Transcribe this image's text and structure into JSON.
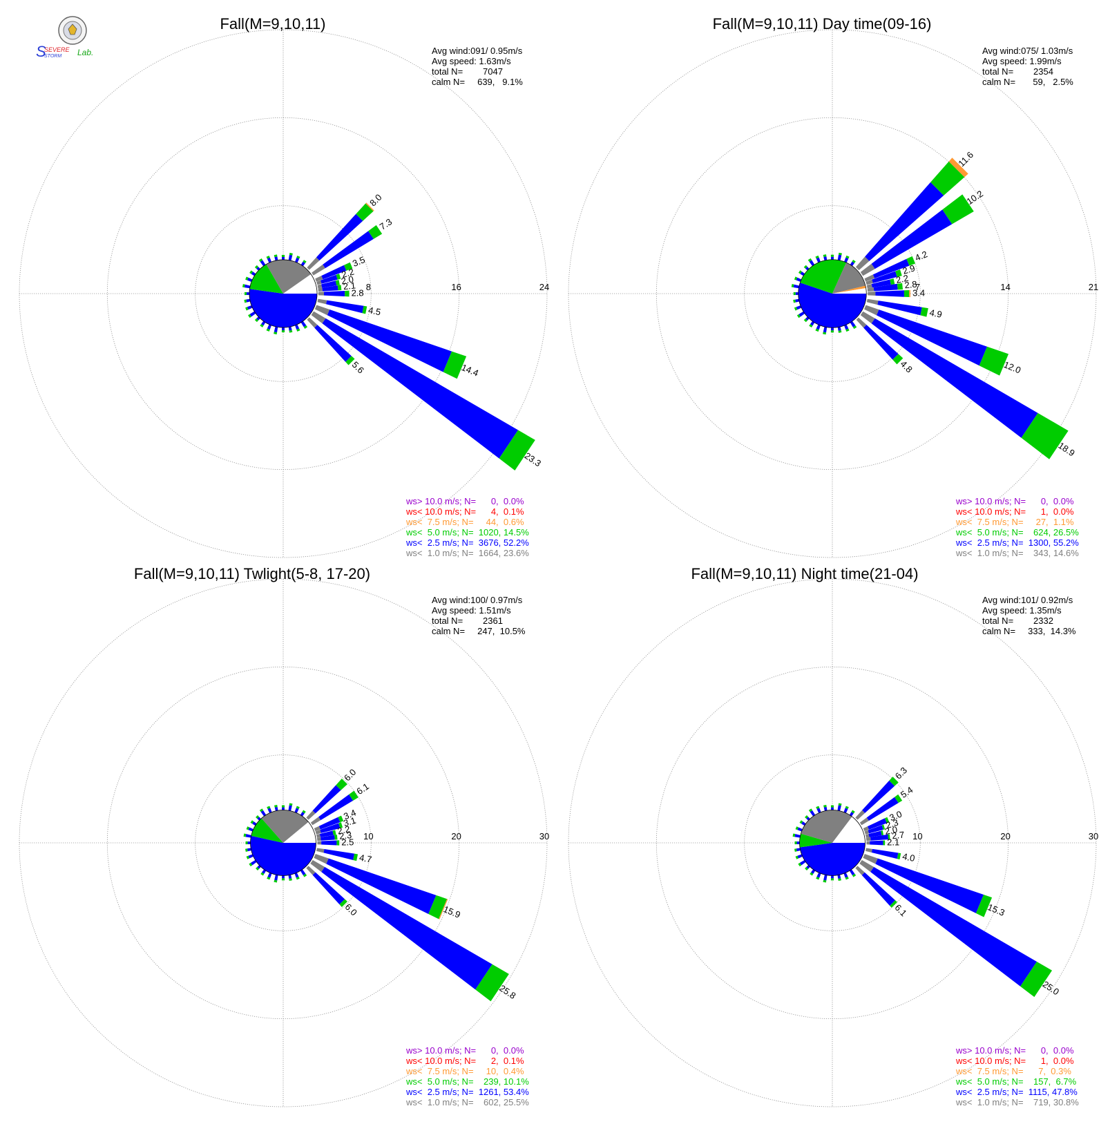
{
  "logo": {
    "text_severe": "SEVERE",
    "text_storm": "STORM",
    "text_lab": "Lab.",
    "colors": {
      "s_blue": "#2a3ed6",
      "s_red": "#e0242a",
      "green": "#18a818",
      "orange": "#ff8c00"
    }
  },
  "colors": {
    "gt10": "#9900cc",
    "lt10": "#ff0000",
    "lt7_5": "#ff9933",
    "lt5": "#00cc00",
    "lt2_5": "#0000ff",
    "lt1": "#808080",
    "calm_sector": "#ffffff",
    "axis": "#909090"
  },
  "chart_data": [
    {
      "type": "wind-rose",
      "title": "Fall(M=9,10,11)",
      "info": [
        "Avg wind:091/ 0.95m/s",
        "Avg speed: 1.63m/s",
        "total N=        7047",
        "calm N=     639,   9.1%"
      ],
      "rings": [
        8,
        16,
        24
      ],
      "ring_labels": [
        "8",
        "16",
        "24"
      ],
      "calm_pct": 9.1,
      "pie_radius_data": 1.7,
      "pie": [
        [
          "lt2_5",
          52.2
        ],
        [
          "lt5",
          14.5
        ],
        [
          "lt1",
          23.6
        ],
        [
          "calm_sector",
          9.7
        ]
      ],
      "spokes": [
        {
          "dir": 45,
          "total": 8.0,
          "lt5": 1.3,
          "lt7_5": 0.1,
          "label": "8.0"
        },
        {
          "dir": 56.25,
          "total": 7.3,
          "lt5": 0.9,
          "label": "7.3"
        },
        {
          "dir": 67.5,
          "total": 3.5,
          "lt5": 0.6,
          "label": "3.5"
        },
        {
          "dir": 73,
          "total": 2.2,
          "lt5": 0.3,
          "label": "2.2"
        },
        {
          "dir": 78.75,
          "total": 2.0,
          "lt5": 0.3,
          "label": "2.0"
        },
        {
          "dir": 84,
          "total": 2.1,
          "lt5": 0.3,
          "label": "2.1"
        },
        {
          "dir": 90,
          "total": 2.8,
          "lt5": 0.4,
          "label": "2.8"
        },
        {
          "dir": 101.25,
          "total": 4.5,
          "lt5": 0.3,
          "label": "4.5"
        },
        {
          "dir": 112.5,
          "total": 14.4,
          "lt5": 1.4,
          "label": "14.4"
        },
        {
          "dir": 123.75,
          "total": 23.3,
          "lt5": 1.8,
          "label": "23.3"
        },
        {
          "dir": 135,
          "total": 5.6,
          "lt5": 0.4,
          "label": "5.6"
        }
      ],
      "legend": [
        {
          "key": "gt10",
          "text": "ws> 10.0 m/s; N=      0,  0.0%"
        },
        {
          "key": "lt10",
          "text": "ws< 10.0 m/s; N=      4,  0.1%"
        },
        {
          "key": "lt7_5",
          "text": "ws<  7.5 m/s; N=     44,  0.6%"
        },
        {
          "key": "lt5",
          "text": "ws<  5.0 m/s; N=  1020, 14.5%"
        },
        {
          "key": "lt2_5",
          "text": "ws<  2.5 m/s; N=  3676, 52.2%"
        },
        {
          "key": "lt1",
          "text": "ws<  1.0 m/s; N=  1664, 23.6%"
        }
      ]
    },
    {
      "type": "wind-rose",
      "title": "Fall(M=9,10,11) Day time(09-16)",
      "info": [
        "Avg wind:075/ 1.03m/s",
        "Avg speed: 1.99m/s",
        "total N=        2354",
        "calm N=       59,   2.5%"
      ],
      "rings": [
        7,
        14,
        21
      ],
      "ring_labels": [
        "7",
        "14",
        "21"
      ],
      "calm_pct": 2.5,
      "pie_radius_data": 1.5,
      "pie": [
        [
          "lt2_5",
          55.2
        ],
        [
          "lt5",
          26.5
        ],
        [
          "lt1",
          14.6
        ],
        [
          "lt7_5",
          1.1
        ],
        [
          "calm_sector",
          2.6
        ]
      ],
      "spokes": [
        {
          "dir": 45,
          "total": 11.6,
          "lt5": 2.2,
          "lt7_5": 0.4,
          "label": "11.6"
        },
        {
          "dir": 56.25,
          "total": 10.2,
          "lt5": 2.0,
          "label": "10.2"
        },
        {
          "dir": 67.5,
          "total": 4.2,
          "lt5": 0.5,
          "label": "4.2"
        },
        {
          "dir": 73,
          "total": 2.9,
          "lt5": 0.4,
          "label": "2.9"
        },
        {
          "dir": 78.75,
          "total": 2.2,
          "lt5": 0.3,
          "label": "2.2"
        },
        {
          "dir": 84,
          "total": 2.8,
          "lt5": 0.4,
          "label": "2.8"
        },
        {
          "dir": 90,
          "total": 3.4,
          "lt5": 0.4,
          "lt7_5": 0.1,
          "label": "3.4"
        },
        {
          "dir": 101.25,
          "total": 4.9,
          "lt5": 0.5,
          "label": "4.9"
        },
        {
          "dir": 112.5,
          "total": 12.0,
          "lt5": 1.8,
          "label": "12.0"
        },
        {
          "dir": 123.75,
          "total": 18.9,
          "lt5": 2.8,
          "label": "18.9"
        },
        {
          "dir": 135,
          "total": 4.8,
          "lt5": 0.5,
          "label": "4.8"
        }
      ],
      "legend": [
        {
          "key": "gt10",
          "text": "ws> 10.0 m/s; N=      0,  0.0%"
        },
        {
          "key": "lt10",
          "text": "ws< 10.0 m/s; N=      1,  0.0%"
        },
        {
          "key": "lt7_5",
          "text": "ws<  7.5 m/s; N=     27,  1.1%"
        },
        {
          "key": "lt5",
          "text": "ws<  5.0 m/s; N=    624, 26.5%"
        },
        {
          "key": "lt2_5",
          "text": "ws<  2.5 m/s; N=  1300, 55.2%"
        },
        {
          "key": "lt1",
          "text": "ws<  1.0 m/s; N=    343, 14.6%"
        }
      ]
    },
    {
      "type": "wind-rose",
      "title": "Fall(M=9,10,11) Twlight(5-8, 17-20)",
      "info": [
        "Avg wind:100/ 0.97m/s",
        "Avg speed: 1.51m/s",
        "total N=        2361",
        "calm N=     247,  10.5%"
      ],
      "rings": [
        10,
        20,
        30
      ],
      "ring_labels": [
        "10",
        "20",
        "30"
      ],
      "calm_pct": 10.5,
      "pie_radius_data": 2.0,
      "pie": [
        [
          "lt2_5",
          53.4
        ],
        [
          "lt5",
          10.1
        ],
        [
          "lt1",
          25.5
        ],
        [
          "calm_sector",
          11.0
        ]
      ],
      "spokes": [
        {
          "dir": 45,
          "total": 6.0,
          "lt5": 1.0,
          "label": "6.0"
        },
        {
          "dir": 56.25,
          "total": 6.1,
          "lt5": 0.7,
          "label": "6.1"
        },
        {
          "dir": 67.5,
          "total": 3.4,
          "lt5": 0.4,
          "label": "3.4"
        },
        {
          "dir": 73,
          "total": 3.1,
          "lt5": 0.3,
          "label": "3.1"
        },
        {
          "dir": 78.75,
          "total": 2.2,
          "lt5": 0.3,
          "label": "2.2"
        },
        {
          "dir": 84,
          "total": 2.3,
          "lt5": 0.3,
          "label": "2.3"
        },
        {
          "dir": 90,
          "total": 2.5,
          "lt5": 0.3,
          "label": "2.5"
        },
        {
          "dir": 101.25,
          "total": 4.7,
          "lt5": 0.4,
          "label": "4.7"
        },
        {
          "dir": 112.5,
          "total": 15.9,
          "lt5": 1.3,
          "lt7_5": 0.1,
          "label": "15.9"
        },
        {
          "dir": 123.75,
          "total": 25.8,
          "lt5": 2.2,
          "label": "25.8"
        },
        {
          "dir": 135,
          "total": 6.0,
          "lt5": 0.4,
          "label": "6.0"
        }
      ],
      "legend": [
        {
          "key": "gt10",
          "text": "ws> 10.0 m/s; N=      0,  0.0%"
        },
        {
          "key": "lt10",
          "text": "ws< 10.0 m/s; N=      2,  0.1%"
        },
        {
          "key": "lt7_5",
          "text": "ws<  7.5 m/s; N=     10,  0.4%"
        },
        {
          "key": "lt5",
          "text": "ws<  5.0 m/s; N=    239, 10.1%"
        },
        {
          "key": "lt2_5",
          "text": "ws<  2.5 m/s; N=  1261, 53.4%"
        },
        {
          "key": "lt1",
          "text": "ws<  1.0 m/s; N=    602, 25.5%"
        }
      ]
    },
    {
      "type": "wind-rose",
      "title": "Fall(M=9,10,11) Night time(21-04)",
      "info": [
        "Avg wind:101/ 0.92m/s",
        "Avg speed: 1.35m/s",
        "total N=        2332",
        "calm N=     333,  14.3%"
      ],
      "rings": [
        10,
        20,
        30
      ],
      "ring_labels": [
        "10",
        "20",
        "30"
      ],
      "calm_pct": 14.3,
      "pie_radius_data": 2.0,
      "pie": [
        [
          "lt2_5",
          47.8
        ],
        [
          "lt5",
          6.7
        ],
        [
          "lt1",
          30.8
        ],
        [
          "calm_sector",
          14.7
        ]
      ],
      "spokes": [
        {
          "dir": 45,
          "total": 6.3,
          "lt5": 0.6,
          "label": "6.3"
        },
        {
          "dir": 56.25,
          "total": 5.4,
          "lt5": 0.5,
          "label": "5.4"
        },
        {
          "dir": 67.5,
          "total": 3.0,
          "lt5": 0.3,
          "label": "3.0"
        },
        {
          "dir": 73,
          "total": 2.3,
          "lt5": 0.2,
          "label": "2.3"
        },
        {
          "dir": 78.75,
          "total": 2.0,
          "lt5": 0.2,
          "label": "2.0"
        },
        {
          "dir": 84,
          "total": 2.7,
          "lt5": 0.2,
          "label": "2.7"
        },
        {
          "dir": 90,
          "total": 2.1,
          "lt5": 0.2,
          "label": "2.1"
        },
        {
          "dir": 101.25,
          "total": 4.0,
          "lt5": 0.3,
          "label": "4.0"
        },
        {
          "dir": 112.5,
          "total": 15.3,
          "lt5": 1.0,
          "label": "15.3"
        },
        {
          "dir": 123.75,
          "total": 25.0,
          "lt5": 2.0,
          "label": "25.0"
        },
        {
          "dir": 135,
          "total": 6.1,
          "lt5": 0.3,
          "label": "6.1"
        }
      ],
      "legend": [
        {
          "key": "gt10",
          "text": "ws> 10.0 m/s; N=      0,  0.0%"
        },
        {
          "key": "lt10",
          "text": "ws< 10.0 m/s; N=      1,  0.0%"
        },
        {
          "key": "lt7_5",
          "text": "ws<  7.5 m/s; N=      7,  0.3%"
        },
        {
          "key": "lt5",
          "text": "ws<  5.0 m/s; N=    157,  6.7%"
        },
        {
          "key": "lt2_5",
          "text": "ws<  2.5 m/s; N=  1115, 47.8%"
        },
        {
          "key": "lt1",
          "text": "ws<  1.0 m/s; N=    719, 30.8%"
        }
      ]
    }
  ]
}
